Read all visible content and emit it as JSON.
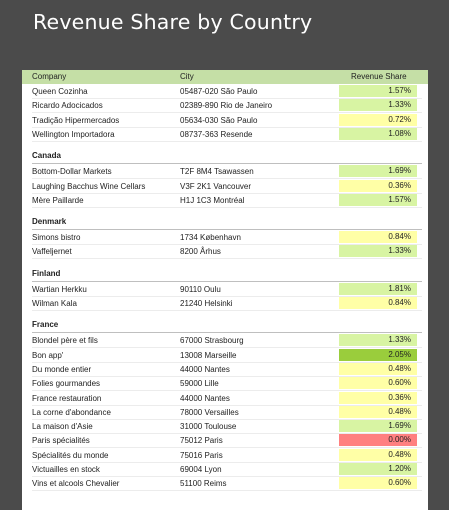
{
  "title": "Revenue Share by Country",
  "columns": {
    "company": "Company",
    "city": "City",
    "revenue": "Revenue Share"
  },
  "colors": {
    "low": "#ff8080",
    "mid": "#ffff9e",
    "high": "#92d050",
    "header": "#c5dfa6"
  },
  "groups": [
    {
      "name": "",
      "rows": [
        {
          "company": "Queen Cozinha",
          "city": "05487-020 São Paulo",
          "revenue": "1.57%",
          "value": 1.57
        },
        {
          "company": "Ricardo Adocicados",
          "city": "02389-890 Rio de Janeiro",
          "revenue": "1.33%",
          "value": 1.33
        },
        {
          "company": "Tradição Hipermercados",
          "city": "05634-030 São Paulo",
          "revenue": "0.72%",
          "value": 0.72
        },
        {
          "company": "Wellington Importadora",
          "city": "08737-363 Resende",
          "revenue": "1.08%",
          "value": 1.08
        }
      ]
    },
    {
      "name": "Canada",
      "rows": [
        {
          "company": "Bottom-Dollar Markets",
          "city": "T2F 8M4 Tsawassen",
          "revenue": "1.69%",
          "value": 1.69
        },
        {
          "company": "Laughing Bacchus Wine Cellars",
          "city": "V3F 2K1 Vancouver",
          "revenue": "0.36%",
          "value": 0.36
        },
        {
          "company": "Mère Paillarde",
          "city": "H1J 1C3 Montréal",
          "revenue": "1.57%",
          "value": 1.57
        }
      ]
    },
    {
      "name": "Denmark",
      "rows": [
        {
          "company": "Simons bistro",
          "city": "1734 København",
          "revenue": "0.84%",
          "value": 0.84
        },
        {
          "company": "Vaffeljernet",
          "city": "8200 Århus",
          "revenue": "1.33%",
          "value": 1.33
        }
      ]
    },
    {
      "name": "Finland",
      "rows": [
        {
          "company": "Wartian Herkku",
          "city": "90110 Oulu",
          "revenue": "1.81%",
          "value": 1.81
        },
        {
          "company": "Wilman Kala",
          "city": "21240 Helsinki",
          "revenue": "0.84%",
          "value": 0.84
        }
      ]
    },
    {
      "name": "France",
      "rows": [
        {
          "company": "Blondel père et fils",
          "city": "67000 Strasbourg",
          "revenue": "1.33%",
          "value": 1.33
        },
        {
          "company": "Bon app'",
          "city": "13008 Marseille",
          "revenue": "2.05%",
          "value": 2.05
        },
        {
          "company": "Du monde entier",
          "city": "44000 Nantes",
          "revenue": "0.48%",
          "value": 0.48
        },
        {
          "company": "Folies gourmandes",
          "city": "59000 Lille",
          "revenue": "0.60%",
          "value": 0.6
        },
        {
          "company": "France restauration",
          "city": "44000 Nantes",
          "revenue": "0.36%",
          "value": 0.36
        },
        {
          "company": "La corne d'abondance",
          "city": "78000 Versailles",
          "revenue": "0.48%",
          "value": 0.48
        },
        {
          "company": "La maison d'Asie",
          "city": "31000 Toulouse",
          "revenue": "1.69%",
          "value": 1.69
        },
        {
          "company": "Paris spécialités",
          "city": "75012 Paris",
          "revenue": "0.00%",
          "value": 0.0
        },
        {
          "company": "Spécialités du monde",
          "city": "75016 Paris",
          "revenue": "0.48%",
          "value": 0.48
        },
        {
          "company": "Victuailles en stock",
          "city": "69004 Lyon",
          "revenue": "1.20%",
          "value": 1.2
        },
        {
          "company": "Vins et alcools Chevalier",
          "city": "51100 Reims",
          "revenue": "0.60%",
          "value": 0.6
        }
      ]
    }
  ]
}
